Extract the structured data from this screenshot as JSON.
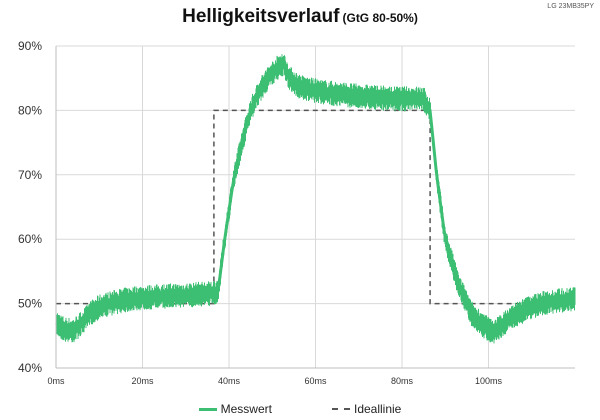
{
  "title": "Helligkeitsverlauf",
  "subtitle": "(GtG 80-50%)",
  "corner_label": "LG 23MB35PY",
  "colors": {
    "measured": "#3cbf73",
    "ideal": "#555555",
    "grid": "#d9d9d9",
    "axis": "#bfbfbf"
  },
  "chart_data": {
    "type": "line",
    "title": "Helligkeitsverlauf",
    "subtitle": "(GtG 80-50%)",
    "xlabel": "",
    "ylabel": "",
    "xlim": [
      0,
      120
    ],
    "ylim": [
      40,
      90
    ],
    "x_unit": "ms",
    "y_unit": "%",
    "x_ticks": [
      "0ms",
      "20ms",
      "40ms",
      "60ms",
      "80ms",
      "100ms"
    ],
    "y_ticks": [
      "40%",
      "50%",
      "60%",
      "70%",
      "80%",
      "90%"
    ],
    "grid": true,
    "legend_position": "bottom",
    "series": [
      {
        "name": "Messwert",
        "style": "solid",
        "color": "#3cbf73",
        "band": 1.5,
        "x": [
          0,
          2,
          4,
          6,
          8,
          10,
          14,
          18,
          22,
          26,
          30,
          34,
          36,
          37.5,
          39,
          41,
          43,
          45,
          47,
          49,
          51,
          52.5,
          54,
          56,
          58,
          62,
          66,
          70,
          74,
          78,
          82,
          85,
          86.5,
          88,
          90,
          93,
          96,
          99,
          101,
          103,
          106,
          110,
          114,
          118,
          120
        ],
        "y": [
          47,
          46,
          45.8,
          47,
          48.5,
          49.5,
          50.3,
          50.8,
          51,
          51.2,
          51.3,
          51.5,
          51.6,
          52,
          60,
          69,
          75,
          80,
          83,
          85,
          86.5,
          87.3,
          85,
          83.8,
          83.3,
          82.8,
          82.5,
          82.2,
          82,
          81.8,
          81.8,
          81.8,
          80,
          70,
          60,
          53,
          48.5,
          46.5,
          45.6,
          46.5,
          48.2,
          49.5,
          50.3,
          50.6,
          50.8
        ]
      },
      {
        "name": "Ideallinie",
        "style": "dashed",
        "color": "#555555",
        "x": [
          0,
          36.5,
          36.5,
          86.5,
          86.5,
          120
        ],
        "y": [
          50,
          50,
          80,
          80,
          50,
          50
        ]
      }
    ]
  }
}
